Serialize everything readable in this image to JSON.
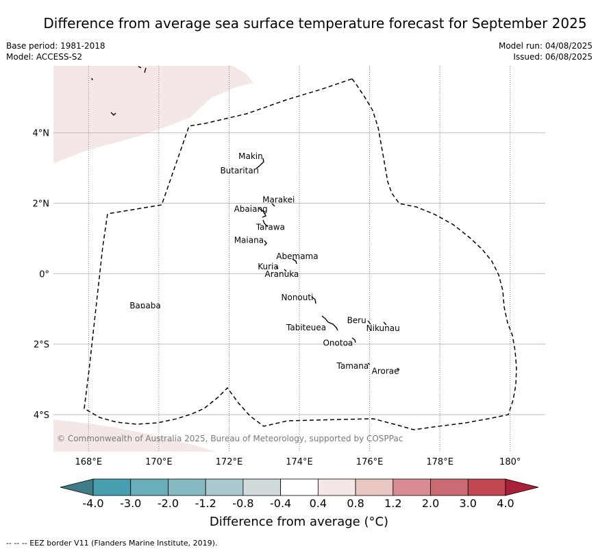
{
  "title": "Difference from average sea surface temperature forecast for September 2025",
  "base_period": "Base period: 1981-2018",
  "model": "Model: ACCESS-S2",
  "model_run": "Model run: 04/08/2025",
  "issued": "Issued: 06/08/2025",
  "copyright": "© Commonwealth of Australia 2025, Bureau of Meteorology, supported by COSPPac",
  "lat_ticks": [
    {
      "value": 4,
      "label": "4°N"
    },
    {
      "value": 2,
      "label": "2°N"
    },
    {
      "value": 0,
      "label": "0°"
    },
    {
      "value": -2,
      "label": "2°S"
    },
    {
      "value": -4,
      "label": "4°S"
    }
  ],
  "lon_ticks": [
    {
      "value": 168,
      "label": "168°E"
    },
    {
      "value": 170,
      "label": "170°E"
    },
    {
      "value": 172,
      "label": "172°E"
    },
    {
      "value": 174,
      "label": "174°E"
    },
    {
      "value": 176,
      "label": "176°E"
    },
    {
      "value": 178,
      "label": "178°E"
    },
    {
      "value": 180,
      "label": "180°"
    }
  ],
  "islands": [
    {
      "name": "Makin",
      "lon": 172.95,
      "lat": 3.2
    },
    {
      "name": "Butaritari",
      "lon": 172.8,
      "lat": 3.1
    },
    {
      "name": "Marakei",
      "lon": 173.3,
      "lat": 2.0
    },
    {
      "name": "Abaiang",
      "lon": 172.9,
      "lat": 1.8
    },
    {
      "name": "Tarawa",
      "lon": 173.0,
      "lat": 1.4
    },
    {
      "name": "Maiana",
      "lon": 173.0,
      "lat": 0.95
    },
    {
      "name": "Abemama",
      "lon": 173.85,
      "lat": 0.45
    },
    {
      "name": "Kuria",
      "lon": 173.4,
      "lat": 0.22
    },
    {
      "name": "Aranuka",
      "lon": 173.6,
      "lat": 0.18
    },
    {
      "name": "Nonouti",
      "lon": 174.4,
      "lat": -0.65
    },
    {
      "name": "Banaba",
      "lon": 169.5,
      "lat": -0.85
    },
    {
      "name": "Beru",
      "lon": 176.0,
      "lat": -1.33
    },
    {
      "name": "Nikunau",
      "lon": 176.45,
      "lat": -1.35
    },
    {
      "name": "Tabiteuea",
      "lon": 174.8,
      "lat": -1.3
    },
    {
      "name": "Onotoa",
      "lon": 175.55,
      "lat": -1.85
    },
    {
      "name": "Tamana",
      "lon": 175.98,
      "lat": -2.5
    },
    {
      "name": "Arorae",
      "lon": 176.82,
      "lat": -2.65
    }
  ],
  "colorbar": {
    "title": "Difference from average (°C)",
    "levels": [
      "-4.0",
      "-3.0",
      "-2.0",
      "-1.2",
      "-0.8",
      "-0.4",
      "0.4",
      "0.8",
      "1.2",
      "2.0",
      "3.0",
      "4.0"
    ],
    "colors": [
      "#479fb0",
      "#6aaebb",
      "#87b9c3",
      "#a9c9ce",
      "#d1dbdb",
      "#ffffff",
      "#f4e8e6",
      "#e8c7c3",
      "#d98c93",
      "#cb6a73",
      "#c24552"
    ],
    "under_color": "#3f7c87",
    "over_color": "#a8203a"
  },
  "map_fill_color": "#f4e8e6",
  "footer": "--  --  -- EEZ border V11 (Flanders Marine Institute, 2019)."
}
